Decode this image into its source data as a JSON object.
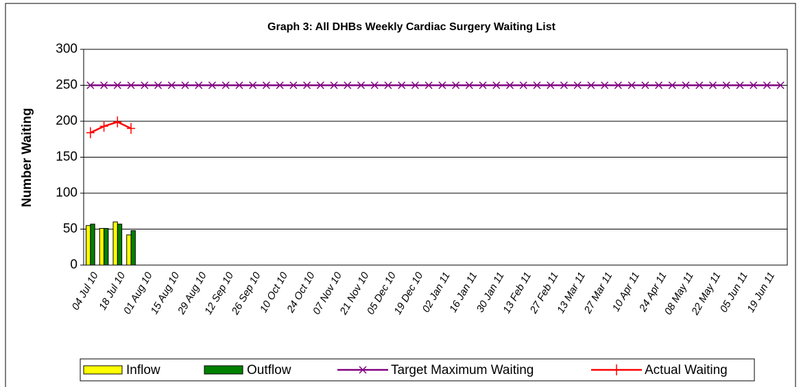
{
  "chart_data": {
    "type": "bar",
    "title": "Graph 3: All DHBs Weekly Cardiac Surgery Waiting List",
    "y_label": "Number Waiting",
    "categories": [
      "04 Jul 10",
      null,
      "18 Jul 10",
      null,
      "01 Aug 10",
      null,
      "15 Aug 10",
      null,
      "29 Aug 10",
      null,
      "12 Sep 10",
      null,
      "26 Sep 10",
      null,
      "10 Oct 10",
      null,
      "24 Oct 10",
      null,
      "07 Nov 10",
      null,
      "21 Nov 10",
      null,
      "05 Dec 10",
      null,
      "19 Dec 10",
      null,
      "02 Jan 11",
      null,
      "16 Jan 11",
      null,
      "30 Jan 11",
      null,
      "13 Feb 11",
      null,
      "27 Feb 11",
      null,
      "13 Mar 11",
      null,
      "27 Mar 11",
      null,
      "10 Apr 11",
      null,
      "24 Apr 11",
      null,
      "08 May 11",
      null,
      "22 May 11",
      null,
      "05 Jun 11",
      null,
      "19 Jun 11",
      null
    ],
    "series": [
      {
        "name": "Inflow",
        "type": "bar",
        "color": "#ffff00",
        "values": [
          55,
          51,
          60,
          42,
          null,
          null,
          null,
          null,
          null,
          null,
          null,
          null,
          null,
          null,
          null,
          null,
          null,
          null,
          null,
          null,
          null,
          null,
          null,
          null,
          null,
          null,
          null,
          null,
          null,
          null,
          null,
          null,
          null,
          null,
          null,
          null,
          null,
          null,
          null,
          null,
          null,
          null,
          null,
          null,
          null,
          null,
          null,
          null,
          null,
          null,
          null,
          null
        ]
      },
      {
        "name": "Outflow",
        "type": "bar",
        "color": "#008000",
        "values": [
          57,
          51,
          57,
          48,
          null,
          null,
          null,
          null,
          null,
          null,
          null,
          null,
          null,
          null,
          null,
          null,
          null,
          null,
          null,
          null,
          null,
          null,
          null,
          null,
          null,
          null,
          null,
          null,
          null,
          null,
          null,
          null,
          null,
          null,
          null,
          null,
          null,
          null,
          null,
          null,
          null,
          null,
          null,
          null,
          null,
          null,
          null,
          null,
          null,
          null,
          null,
          null
        ]
      },
      {
        "name": "Target Maximum Waiting",
        "type": "line",
        "marker": "x",
        "color": "#800080",
        "values": [
          250,
          250,
          250,
          250,
          250,
          250,
          250,
          250,
          250,
          250,
          250,
          250,
          250,
          250,
          250,
          250,
          250,
          250,
          250,
          250,
          250,
          250,
          250,
          250,
          250,
          250,
          250,
          250,
          250,
          250,
          250,
          250,
          250,
          250,
          250,
          250,
          250,
          250,
          250,
          250,
          250,
          250,
          250,
          250,
          250,
          250,
          250,
          250,
          250,
          250,
          250,
          250
        ]
      },
      {
        "name": "Actual Waiting",
        "type": "line",
        "marker": "+",
        "color": "#ff0000",
        "values": [
          184,
          193,
          199,
          190,
          null,
          null,
          null,
          null,
          null,
          null,
          null,
          null,
          null,
          null,
          null,
          null,
          null,
          null,
          null,
          null,
          null,
          null,
          null,
          null,
          null,
          null,
          null,
          null,
          null,
          null,
          null,
          null,
          null,
          null,
          null,
          null,
          null,
          null,
          null,
          null,
          null,
          null,
          null,
          null,
          null,
          null,
          null,
          null,
          null,
          null,
          null,
          null
        ]
      }
    ],
    "ylim": [
      0,
      300
    ],
    "yticks": [
      0,
      50,
      100,
      150,
      200,
      250,
      300
    ],
    "grid": true,
    "legend": "bottom"
  }
}
